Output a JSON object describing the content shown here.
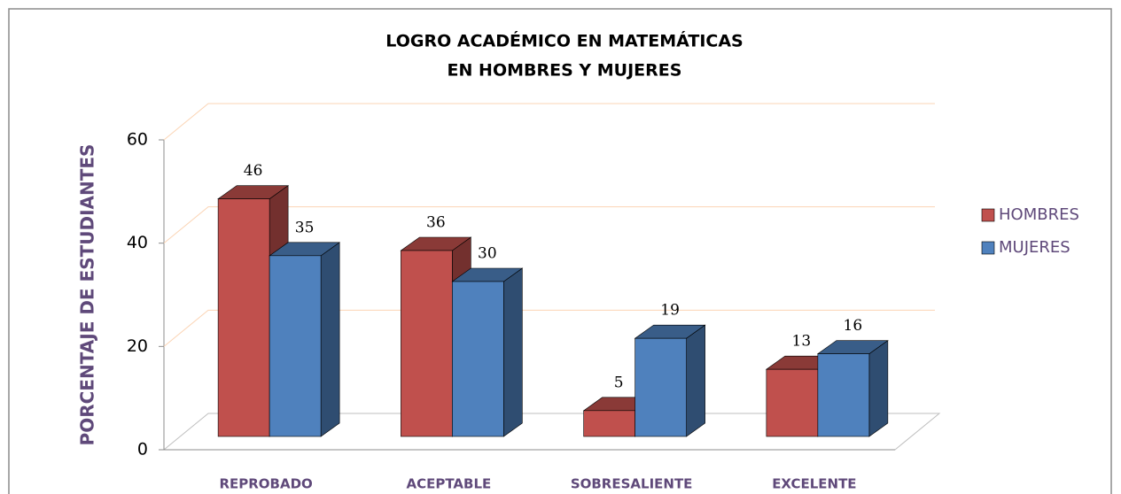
{
  "chart_data": {
    "type": "bar3d",
    "title": [
      "LOGRO ACADÉMICO EN MATEMÁTICAS",
      "EN HOMBRES Y MUJERES"
    ],
    "ylabel": "PORCENTAJE DE ESTUDIANTES",
    "categories": [
      "REPROBADO",
      "ACEPTABLE",
      "SOBRESALIENTE",
      "EXCELENTE"
    ],
    "series": [
      {
        "name": "HOMBRES",
        "color": "#c0504d",
        "values": [
          46,
          36,
          5,
          13
        ]
      },
      {
        "name": "MUJERES",
        "color": "#4f81bd",
        "values": [
          35,
          30,
          19,
          16
        ]
      }
    ],
    "ylim": [
      0,
      60
    ],
    "yticks": [
      0,
      20,
      40,
      60
    ],
    "grid": true,
    "legend": "right"
  }
}
